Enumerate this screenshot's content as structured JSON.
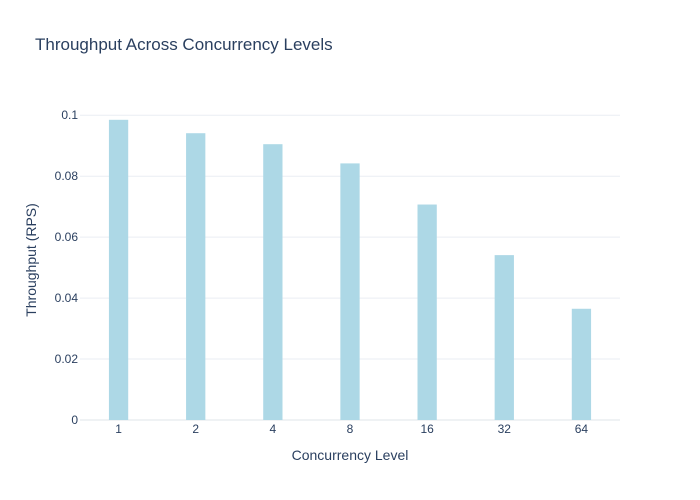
{
  "chart_data": {
    "type": "bar",
    "title": "Throughput Across Concurrency Levels",
    "xlabel": "Concurrency Level",
    "ylabel": "Throughput (RPS)",
    "categories": [
      "1",
      "2",
      "4",
      "8",
      "16",
      "32",
      "64"
    ],
    "values": [
      0.0985,
      0.0941,
      0.0905,
      0.0842,
      0.0707,
      0.0541,
      0.0365
    ],
    "ylim": [
      0,
      0.105
    ],
    "yticks": [
      0,
      0.02,
      0.04,
      0.06,
      0.08,
      0.1
    ],
    "ytick_labels": [
      "0",
      "0.02",
      "0.04",
      "0.06",
      "0.08",
      "0.1"
    ],
    "grid": true,
    "bar_color": "#add8e6"
  }
}
